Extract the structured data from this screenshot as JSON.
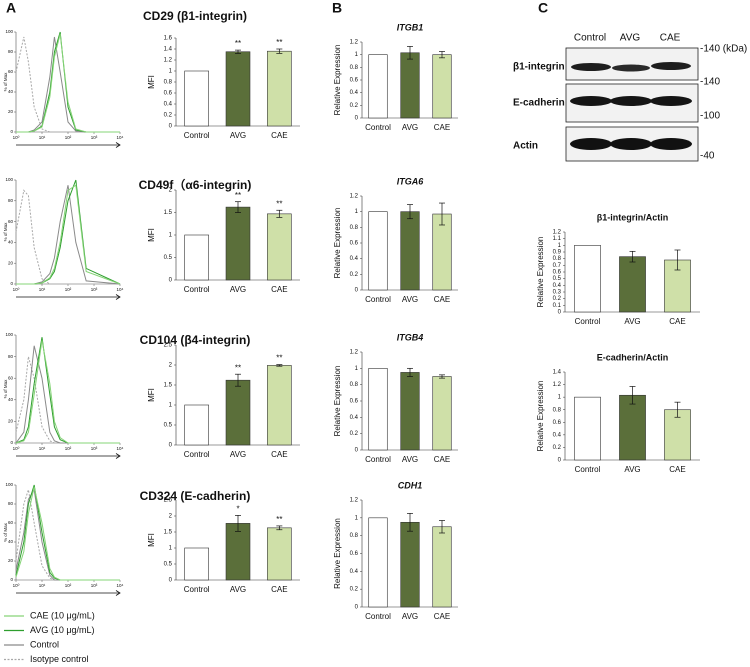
{
  "panels": [
    "A",
    "B",
    "C"
  ],
  "legend": [
    {
      "name": "CAE (10 μg/mL)",
      "color": "#86d477",
      "dashed": false
    },
    {
      "name": "AVG (10 μg/mL)",
      "color": "#2e9e2e",
      "dashed": false
    },
    {
      "name": "Control",
      "color": "#8a8a8a",
      "dashed": false
    },
    {
      "name": "Isotype control",
      "color": "#a8a8a8",
      "dashed": true
    }
  ],
  "blot": {
    "lanes": [
      "Control",
      "AVG",
      "CAE"
    ],
    "rows": [
      "β1-integrin",
      "E-cadherin",
      "Actin"
    ],
    "markers": [
      "-140 (kDa)",
      "-140",
      "-100",
      "-40"
    ]
  },
  "chart_data": [
    {
      "type": "line",
      "title": "CD29 (β1-integrin)",
      "ylabel": "% of Max",
      "xscale": "log",
      "x": [
        1,
        2,
        3,
        5,
        10,
        20,
        30,
        50,
        100,
        200,
        500,
        10000
      ],
      "xlim": [
        1,
        10000
      ],
      "xticks": [
        {
          "value": 1,
          "label": "10⁰"
        },
        {
          "value": 10,
          "label": "10¹"
        },
        {
          "value": 100,
          "label": "10²"
        },
        {
          "value": 1000,
          "label": "10³"
        },
        {
          "value": 10000,
          "label": "10⁴"
        }
      ],
      "ylim": [
        0,
        100
      ],
      "yticks": [
        0,
        20,
        40,
        60,
        80,
        100
      ],
      "series": [
        {
          "values": [
            0,
            0,
            0,
            1,
            5,
            35,
            75,
            98,
            30,
            3,
            0,
            0
          ]
        },
        {
          "values": [
            0,
            0,
            0,
            1,
            6,
            40,
            80,
            100,
            25,
            2,
            0,
            0
          ]
        },
        {
          "values": [
            0,
            0,
            0,
            2,
            10,
            55,
            95,
            60,
            10,
            1,
            0,
            0
          ]
        },
        {
          "values": [
            60,
            95,
            70,
            25,
            3,
            0,
            0,
            0,
            0,
            0,
            0,
            0
          ]
        }
      ]
    },
    {
      "type": "line",
      "title": "CD49f（α6-integrin)",
      "ylabel": "% of Max",
      "xscale": "log",
      "x": [
        1,
        2,
        3,
        5,
        10,
        20,
        30,
        50,
        100,
        200,
        500,
        10000
      ],
      "xlim": [
        1,
        10000
      ],
      "xticks": [
        {
          "value": 1,
          "label": "10⁰"
        },
        {
          "value": 10,
          "label": "10¹"
        },
        {
          "value": 100,
          "label": "10²"
        },
        {
          "value": 1000,
          "label": "10³"
        },
        {
          "value": 10000,
          "label": "10⁴"
        }
      ],
      "ylim": [
        0,
        100
      ],
      "yticks": [
        0,
        20,
        40,
        60,
        80,
        100
      ],
      "series": [
        {
          "values": [
            0,
            0,
            0,
            0,
            1,
            6,
            15,
            40,
            90,
            95,
            12,
            0
          ]
        },
        {
          "values": [
            0,
            0,
            0,
            0,
            1,
            5,
            12,
            35,
            80,
            100,
            15,
            0
          ]
        },
        {
          "values": [
            0,
            0,
            0,
            0,
            2,
            10,
            25,
            60,
            95,
            40,
            3,
            0
          ]
        },
        {
          "values": [
            50,
            90,
            85,
            35,
            5,
            0,
            0,
            0,
            0,
            0,
            0,
            0
          ]
        }
      ]
    },
    {
      "type": "line",
      "title": "CD104 (β4-integrin)",
      "ylabel": "% of Max",
      "xscale": "log",
      "x": [
        1,
        2,
        3,
        5,
        10,
        20,
        30,
        50,
        100,
        200,
        500,
        10000
      ],
      "xlim": [
        1,
        10000
      ],
      "xticks": [
        {
          "value": 1,
          "label": "10⁰"
        },
        {
          "value": 10,
          "label": "10¹"
        },
        {
          "value": 100,
          "label": "10²"
        },
        {
          "value": 1000,
          "label": "10³"
        },
        {
          "value": 10000,
          "label": "10⁴"
        }
      ],
      "ylim": [
        0,
        100
      ],
      "yticks": [
        0,
        20,
        40,
        60,
        80,
        100
      ],
      "series": [
        {
          "values": [
            0,
            2,
            10,
            45,
            95,
            55,
            20,
            5,
            0,
            0,
            0,
            0
          ]
        },
        {
          "values": [
            0,
            3,
            15,
            55,
            98,
            45,
            15,
            3,
            0,
            0,
            0,
            0
          ]
        },
        {
          "values": [
            0,
            10,
            40,
            90,
            60,
            10,
            2,
            0,
            0,
            0,
            0,
            0
          ]
        },
        {
          "values": [
            10,
            40,
            80,
            60,
            15,
            2,
            0,
            0,
            0,
            0,
            0,
            0
          ]
        }
      ]
    },
    {
      "type": "line",
      "title": "CD324 (E-cadherin)",
      "ylabel": "% of Max",
      "xscale": "log",
      "x": [
        1,
        2,
        3,
        5,
        10,
        20,
        30,
        50,
        100,
        200,
        500,
        10000
      ],
      "xlim": [
        1,
        10000
      ],
      "xticks": [
        {
          "value": 1,
          "label": "10⁰"
        },
        {
          "value": 10,
          "label": "10¹"
        },
        {
          "value": 100,
          "label": "10²"
        },
        {
          "value": 1000,
          "label": "10³"
        },
        {
          "value": 10000,
          "label": "10⁴"
        }
      ],
      "ylim": [
        0,
        100
      ],
      "yticks": [
        0,
        20,
        40,
        60,
        80,
        100
      ],
      "series": [
        {
          "values": [
            3,
            30,
            70,
            98,
            60,
            12,
            3,
            0,
            0,
            0,
            0,
            0
          ]
        },
        {
          "values": [
            5,
            40,
            80,
            100,
            50,
            8,
            2,
            0,
            0,
            0,
            0,
            0
          ]
        },
        {
          "values": [
            10,
            50,
            85,
            95,
            40,
            5,
            0,
            0,
            0,
            0,
            0,
            0
          ]
        },
        {
          "values": [
            20,
            80,
            95,
            60,
            15,
            2,
            0,
            0,
            0,
            0,
            0,
            0
          ]
        }
      ]
    },
    {
      "type": "bar",
      "ylabel": "MFI",
      "categories": [
        "Control",
        "AVG",
        "CAE"
      ],
      "colors": [
        "#ffffff",
        "#5b6f3a",
        "#cfe0a8"
      ],
      "values": [
        1,
        1.35,
        1.36
      ],
      "errors": [
        0,
        0.03,
        0.04
      ],
      "annotations": [
        null,
        "**",
        "**"
      ],
      "ylim": [
        0,
        1.6
      ],
      "yticks": [
        0,
        0.2,
        0.4,
        0.6,
        0.8,
        1,
        1.2,
        1.4,
        1.6
      ]
    },
    {
      "type": "bar",
      "ylabel": "MFI",
      "categories": [
        "Control",
        "AVG",
        "CAE"
      ],
      "colors": [
        "#ffffff",
        "#5b6f3a",
        "#cfe0a8"
      ],
      "values": [
        1,
        1.62,
        1.47
      ],
      "errors": [
        0,
        0.12,
        0.08
      ],
      "annotations": [
        null,
        "**",
        "**"
      ],
      "ylim": [
        0,
        2
      ],
      "yticks": [
        0,
        0.5,
        1,
        1.5,
        2
      ]
    },
    {
      "type": "bar",
      "ylabel": "MFI",
      "categories": [
        "Control",
        "AVG",
        "CAE"
      ],
      "colors": [
        "#ffffff",
        "#5b6f3a",
        "#cfe0a8"
      ],
      "values": [
        1,
        1.62,
        1.99
      ],
      "errors": [
        0,
        0.15,
        0.02
      ],
      "annotations": [
        null,
        "**",
        "**"
      ],
      "ylim": [
        0,
        2.5
      ],
      "yticks": [
        0,
        0.5,
        1,
        1.5,
        2,
        2.5
      ]
    },
    {
      "type": "bar",
      "ylabel": "MFI",
      "categories": [
        "Control",
        "AVG",
        "CAE"
      ],
      "colors": [
        "#ffffff",
        "#5b6f3a",
        "#cfe0a8"
      ],
      "values": [
        1,
        1.77,
        1.63
      ],
      "errors": [
        0,
        0.25,
        0.06
      ],
      "annotations": [
        null,
        "*",
        "**"
      ],
      "ylim": [
        0,
        2.5
      ],
      "yticks": [
        0,
        0.5,
        1,
        1.5,
        2,
        2.5
      ]
    },
    {
      "type": "bar",
      "title": "ITGB1",
      "ylabel": "Relative Expression",
      "categories": [
        "Control",
        "AVG",
        "CAE"
      ],
      "colors": [
        "#ffffff",
        "#5b6f3a",
        "#cfe0a8"
      ],
      "values": [
        1,
        1.03,
        1.0
      ],
      "errors": [
        0,
        0.1,
        0.05
      ],
      "ylim": [
        0,
        1.2
      ],
      "yticks": [
        0,
        0.2,
        0.4,
        0.6,
        0.8,
        1,
        1.2
      ]
    },
    {
      "type": "bar",
      "title": "ITGA6",
      "ylabel": "Relative Expression",
      "categories": [
        "Control",
        "AVG",
        "CAE"
      ],
      "colors": [
        "#ffffff",
        "#5b6f3a",
        "#cfe0a8"
      ],
      "values": [
        1,
        1.0,
        0.97
      ],
      "errors": [
        0,
        0.09,
        0.14
      ],
      "ylim": [
        0,
        1.2
      ],
      "yticks": [
        0,
        0.2,
        0.4,
        0.6,
        0.8,
        1,
        1.2
      ]
    },
    {
      "type": "bar",
      "title": "ITGB4",
      "ylabel": "Relative Expression",
      "categories": [
        "Control",
        "AVG",
        "CAE"
      ],
      "colors": [
        "#ffffff",
        "#5b6f3a",
        "#cfe0a8"
      ],
      "values": [
        1,
        0.95,
        0.9
      ],
      "errors": [
        0,
        0.05,
        0.02
      ],
      "ylim": [
        0,
        1.2
      ],
      "yticks": [
        0,
        0.2,
        0.4,
        0.6,
        0.8,
        1,
        1.2
      ]
    },
    {
      "type": "bar",
      "title": "CDH1",
      "ylabel": "Relative Expression",
      "categories": [
        "Control",
        "AVG",
        "CAE"
      ],
      "colors": [
        "#ffffff",
        "#5b6f3a",
        "#cfe0a8"
      ],
      "values": [
        1,
        0.95,
        0.9
      ],
      "errors": [
        0,
        0.1,
        0.07
      ],
      "ylim": [
        0,
        1.2
      ],
      "yticks": [
        0,
        0.2,
        0.4,
        0.6,
        0.8,
        1,
        1.2
      ]
    },
    {
      "type": "bar",
      "title": "β1-integrin/Actin",
      "ylabel": "Relative Expression",
      "categories": [
        "Control",
        "AVG",
        "CAE"
      ],
      "colors": [
        "#ffffff",
        "#5b6f3a",
        "#cfe0a8"
      ],
      "values": [
        1,
        0.83,
        0.78
      ],
      "errors": [
        0,
        0.08,
        0.15
      ],
      "ylim": [
        0,
        1.2
      ],
      "yticks": [
        0,
        0.1,
        0.2,
        0.3,
        0.4,
        0.5,
        0.6,
        0.7,
        0.8,
        0.9,
        1,
        1.1,
        1.2
      ]
    },
    {
      "type": "bar",
      "title": "E-cadherin/Actin",
      "ylabel": "Relative Expression",
      "categories": [
        "Control",
        "AVG",
        "CAE"
      ],
      "colors": [
        "#ffffff",
        "#5b6f3a",
        "#cfe0a8"
      ],
      "values": [
        1,
        1.03,
        0.8
      ],
      "errors": [
        0,
        0.14,
        0.12
      ],
      "ylim": [
        0,
        1.4
      ],
      "yticks": [
        0,
        0.2,
        0.4,
        0.6,
        0.8,
        1,
        1.2,
        1.4
      ]
    }
  ]
}
